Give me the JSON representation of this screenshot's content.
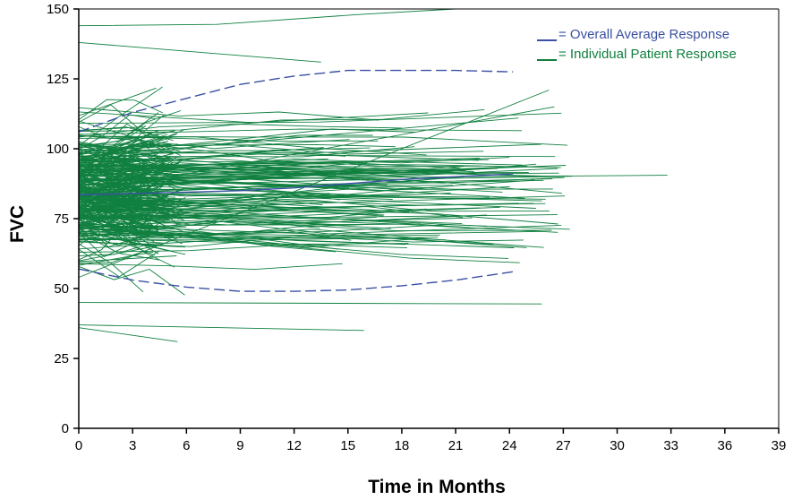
{
  "chart_data": {
    "type": "line",
    "xlabel": "Time in Months",
    "ylabel": "FVC",
    "xlim": [
      0,
      39
    ],
    "ylim": [
      0,
      150
    ],
    "x_ticks": [
      "0",
      "3",
      "6",
      "9",
      "12",
      "15",
      "18",
      "21",
      "24",
      "27",
      "30",
      "33",
      "36",
      "39"
    ],
    "y_ticks": [
      "0",
      "25",
      "50",
      "75",
      "100",
      "125",
      "150"
    ],
    "grid": false,
    "legend_position": "top-right",
    "legend": [
      {
        "label": "= Overall Average Response",
        "color": "#3B50A3"
      },
      {
        "label": "= Individual Patient Response",
        "color": "#118040"
      }
    ],
    "series": [
      {
        "name": "= Overall Average Response",
        "style": "solid",
        "color": "#3B50A3",
        "x": [
          0,
          3,
          6,
          9,
          12,
          15,
          18,
          21,
          24.2
        ],
        "y": [
          83.5,
          84,
          84.5,
          85,
          86,
          87.5,
          89,
          90,
          91
        ]
      },
      {
        "style": "dashed",
        "color": "#3B50A3",
        "x": [
          0,
          3,
          6,
          9,
          12,
          15,
          18,
          21,
          24.2
        ],
        "y": [
          106,
          113,
          118,
          123,
          126,
          128,
          128,
          128,
          127.5
        ]
      },
      {
        "style": "dashed",
        "color": "#3B50A3",
        "x": [
          0,
          3,
          6,
          9,
          12,
          15,
          18,
          21,
          24.2
        ],
        "y": [
          57,
          53,
          50.5,
          49,
          49,
          49.5,
          51,
          53,
          56
        ]
      }
    ],
    "individual_patients": {
      "color": "#118040",
      "style": "solid",
      "examples": [
        {
          "x": [
            0,
            7.7,
            15.6,
            21,
            27.8
          ],
          "y": [
            144,
            144.5,
            148,
            150,
            150
          ]
        },
        {
          "x": [
            0,
            13.5
          ],
          "y": [
            138,
            131
          ]
        },
        {
          "x": [
            0,
            5.5
          ],
          "y": [
            36,
            31
          ]
        },
        {
          "x": [
            0,
            15.9
          ],
          "y": [
            37,
            35
          ]
        },
        {
          "x": [
            0,
            32.8
          ],
          "y": [
            89,
            90.5
          ]
        },
        {
          "x": [
            0,
            24.5
          ],
          "y": [
            97,
            111
          ]
        },
        {
          "x": [
            0,
            25.8
          ],
          "y": [
            45,
            44.5
          ]
        },
        {
          "x": [
            0,
            26.5
          ],
          "y": [
            84,
            115
          ]
        },
        {
          "x": [
            0,
            26.2
          ],
          "y": [
            54,
            121
          ]
        }
      ]
    }
  }
}
